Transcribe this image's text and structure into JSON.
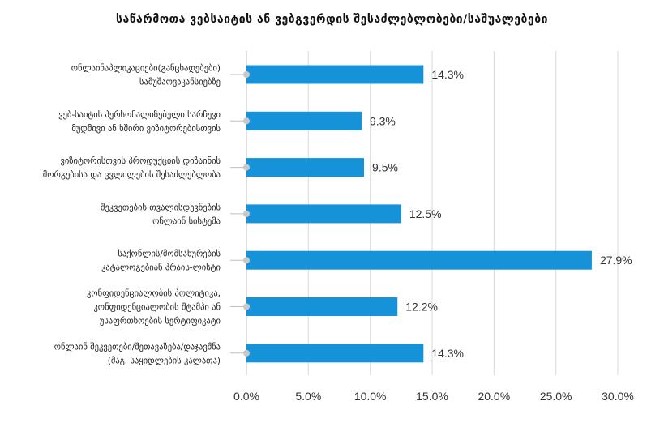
{
  "chart_data": {
    "type": "bar",
    "orientation": "horizontal",
    "title": "საწარმოთა ვებსაიტის ან ვებგვერდის შესაძლებლობები/საშუალებები",
    "xlabel": "",
    "ylabel": "",
    "xlim": [
      0,
      30
    ],
    "x_ticks": [
      "0.0%",
      "5.0%",
      "10.0%",
      "15.0%",
      "20.0%",
      "25.0%",
      "30.0%"
    ],
    "grid": "vertical",
    "legend": "none",
    "bar_color": "#1692D8",
    "categories": [
      [
        "ონლაინაპლიკაციები(განცხადებები)",
        "სამუშაოვაკანსიებზე"
      ],
      [
        "ვებ-საიტის პერსონალიზებული სარჩევი",
        "მუდმივი ან ხშირი ვიზიტორებისთვის"
      ],
      [
        "ვიზიტორისთვის პროდუქციის დიზაინის",
        "მორგებისა და ცვლილების შესაძლებლობა"
      ],
      [
        "შეკვეთების თვალისდევნების",
        "ონლაინ სისტემა"
      ],
      [
        "საქონლის/მომსახურების",
        "კატალოგებიან პრაის-ლისტი"
      ],
      [
        "კონფიდენციალობის პოლიტიკა,",
        "კონფიდენციალობის შტამპი ან",
        "უსაფრთხოების სერტიფიკატი"
      ],
      [
        "ონლაინ შეკვეთები/შეთავაზება/დაჯავშნა",
        "(მაგ. საყიდლების კალათა)"
      ]
    ],
    "values": [
      14.3,
      9.3,
      9.5,
      12.5,
      27.9,
      12.2,
      14.3
    ],
    "data_labels": [
      "14.3%",
      "9.3%",
      "9.5%",
      "12.5%",
      "27.9%",
      "12.2%",
      "14.3%"
    ]
  }
}
